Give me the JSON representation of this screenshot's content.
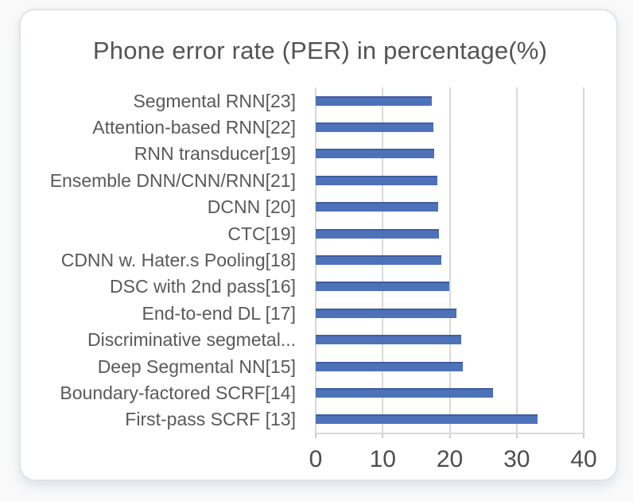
{
  "chart_data": {
    "type": "bar",
    "orientation": "horizontal",
    "title": "Phone error rate (PER) in percentage(%)",
    "categories": [
      "Segmental RNN[23]",
      "Attention-based RNN[22]",
      "RNN transducer[19]",
      "Ensemble DNN/CNN/RNN[21]",
      "DCNN [20]",
      "CTC[19]",
      "CDNN w. Hater.s Pooling[18]",
      "DSC with 2nd pass[16]",
      "End-to-end DL [17]",
      "Discriminative segmetal...",
      "Deep Segmental NN[15]",
      "Boundary-factored SCRF[14]",
      "First-pass SCRF [13]"
    ],
    "values": [
      17.3,
      17.6,
      17.7,
      18.2,
      18.3,
      18.4,
      18.7,
      19.9,
      21.0,
      21.7,
      21.9,
      26.5,
      33.1
    ],
    "xlabel": "",
    "ylabel": "",
    "xlim": [
      0,
      40
    ],
    "xticks": [
      0,
      10,
      20,
      30,
      40
    ],
    "grid": "vertical",
    "legend": "none"
  },
  "colors": {
    "page_bg": "#f9f9f9",
    "card_bg": "#ffffff",
    "card_border": "#e3e3e3",
    "title_text": "#545454",
    "label_text": "#595959",
    "axis_text": "#4d4d4d",
    "gridline": "#d9d9d9",
    "tick_mark": "#cccccc",
    "bar_fill": "#4d72ba",
    "bar_edge": "#3e5e9e"
  }
}
